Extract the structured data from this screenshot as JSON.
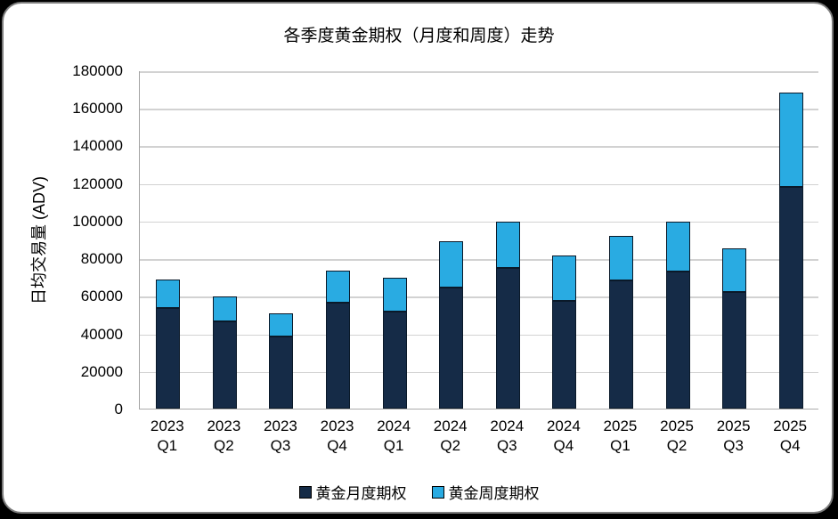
{
  "page": {
    "background_color": "#000000",
    "card_background_color": "#ffffff",
    "card_border_color": "#7c7c7c"
  },
  "chart_data": {
    "type": "bar",
    "stacked": true,
    "title": "各季度黄金期权（月度和周度）走势",
    "ylabel": "日均交易量 (ADV)",
    "xlabel": "",
    "ylim": [
      0,
      180000
    ],
    "ytick_step": 20000,
    "yticks": [
      0,
      20000,
      40000,
      60000,
      80000,
      100000,
      120000,
      140000,
      160000,
      180000
    ],
    "grid": true,
    "legend_position": "bottom",
    "categories": [
      "2023 Q1",
      "2023 Q2",
      "2023 Q3",
      "2023 Q4",
      "2024 Q1",
      "2024 Q2",
      "2024 Q3",
      "2024 Q4",
      "2025 Q1",
      "2025 Q2",
      "2025 Q3",
      "2025 Q4"
    ],
    "series": [
      {
        "name": "黄金月度期权",
        "color": "#152B47",
        "values": [
          53500,
          46500,
          38500,
          56500,
          51500,
          64500,
          75000,
          57500,
          68000,
          73000,
          62000,
          118000
        ]
      },
      {
        "name": "黄金周度期权",
        "color": "#29ABE2",
        "values": [
          15000,
          13000,
          12000,
          17000,
          18000,
          24500,
          24500,
          24000,
          24000,
          26500,
          23500,
          50000
        ]
      }
    ]
  }
}
